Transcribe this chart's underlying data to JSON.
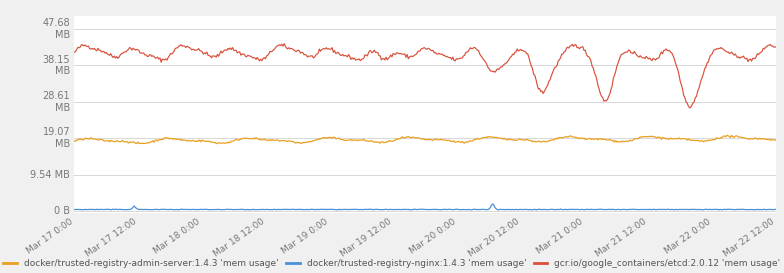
{
  "title": "",
  "y_ticks_labels": [
    "0 B",
    "9.54 MB",
    "19.07\nMB",
    "28.61\nMB",
    "38.15\nMB",
    "47.68\nMB"
  ],
  "y_ticks_values": [
    0,
    9.54,
    19.07,
    28.61,
    38.15,
    47.68
  ],
  "ylim": [
    -0.5,
    51
  ],
  "x_tick_labels": [
    "Mar 17 0:00",
    "Mar 17 12:00",
    "Mar 18 0:00",
    "Mar 18 12:00",
    "Mar 19 0:00",
    "Mar 19 12:00",
    "Mar 20 0:00",
    "Mar 20 12:00",
    "Mar 21 0:00",
    "Mar 21 12:00",
    "Mar 22 0:00",
    "Mar 22 12:00"
  ],
  "background_color": "#f0f0f0",
  "plot_bg_color": "#ffffff",
  "grid_color": "#d8d8d8",
  "legend_entries": [
    "docker/trusted-registry-admin-server:1.4.3 'mem usage'",
    "docker/trusted-registry-nginx:1.4.3 'mem usage'",
    "gcr.io/google_containers/etcd:2.0.12 'mem usage'"
  ],
  "line_colors": [
    "#e8a020",
    "#4a90d9",
    "#d9503a"
  ],
  "n_points": 600
}
